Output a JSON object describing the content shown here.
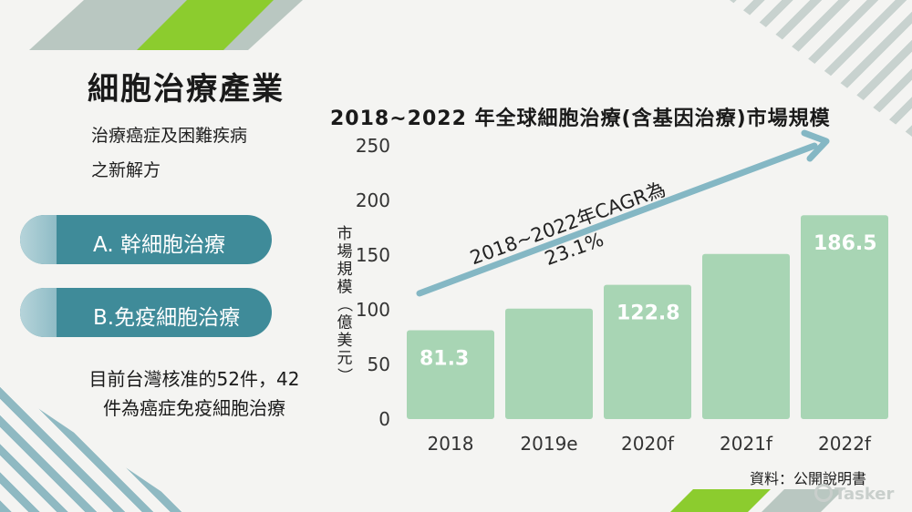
{
  "left_panel": {
    "title": "細胞治療產業",
    "subtitle_line1": "治療癌症及困難疾病",
    "subtitle_line2": "之新解方",
    "pill_a": "A. 幹細胞治療",
    "pill_b": "B.免疫細胞治療",
    "note_line1": "目前台灣核准的52件，42",
    "note_line2": "件為癌症免疫細胞治療"
  },
  "chart_title": "2018~2022  年全球細胞治療(含基因治療)市場規模",
  "source": "資料：公開說明書",
  "logo_text": "Tasker",
  "colors": {
    "bar": "#a8d5b4",
    "arrow": "#84b7c4",
    "pill": "#3f8b99",
    "accent_green": "#8ccc2e"
  },
  "chart_data": {
    "type": "bar",
    "categories": [
      "2018",
      "2019e",
      "2020f",
      "2021f",
      "2022f"
    ],
    "values": [
      81.3,
      101,
      122.8,
      151,
      186.5
    ],
    "data_labels": [
      "81.3",
      "",
      "122.8",
      "",
      "186.5"
    ],
    "title": "2018~2022  年全球細胞治療(含基因治療)市場規模",
    "xlabel": "",
    "ylabel": "市場規模（億美元）",
    "ylim": [
      0,
      250
    ],
    "yticks": [
      0,
      50,
      100,
      150,
      200,
      250
    ],
    "grid": false,
    "legend": "none",
    "annotation_line1": "2018~2022年CAGR為",
    "annotation_line2": "23.1%"
  }
}
